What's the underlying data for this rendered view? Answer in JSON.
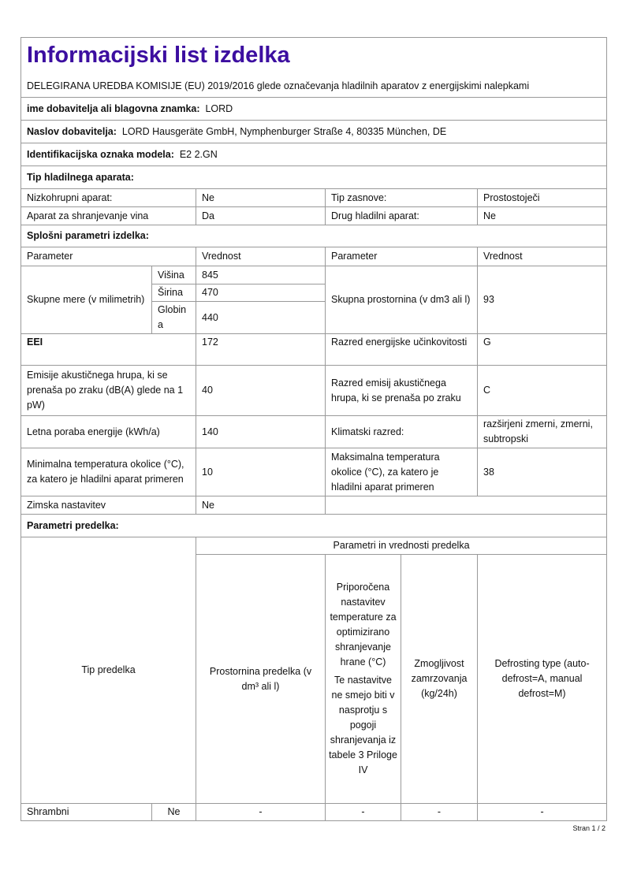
{
  "title": "Informacijski list izdelka",
  "subtitle": "DELEGIRANA UREDBA KOMISIJE (EU) 2019/2016 glede označevanja hladilnih aparatov z energijskimi nalepkami",
  "supplier": {
    "label": "ime dobavitelja ali blagovna znamka:",
    "value": "LORD"
  },
  "address": {
    "label": "Naslov dobavitelja:",
    "value": "LORD Hausgeräte GmbH, Nymphenburger Straße 4, 80335 München, DE"
  },
  "model": {
    "label": "Identifikacijska oznaka modela:",
    "value": "E2 2.GN"
  },
  "type_section": "Tip hladilnega aparata:",
  "type_rows": [
    [
      "Nizkohrupni aparat:",
      "Ne",
      "Tip zasnove:",
      "Prostostoječi"
    ],
    [
      "Aparat za shranjevanje vina",
      "Da",
      "Drug hladilni aparat:",
      "Ne"
    ]
  ],
  "general_section": "Splošni parametri izdelka:",
  "general_header": [
    "Parameter",
    "Vrednost",
    "Parameter",
    "Vrednost"
  ],
  "dimensions": {
    "label": "Skupne mere (v milimetrih)",
    "height_label": "Višina",
    "height": "845",
    "width_label": "Širina",
    "width": "470",
    "depth_label": "Globina",
    "depth": "440",
    "volume_label": "Skupna prostornina (v dm3 ali l)",
    "volume": "93"
  },
  "general_rows": [
    [
      "EEI",
      "172",
      "Razred energijske učinkovitosti",
      "G"
    ],
    [
      "Emisije akustičnega hrupa, ki se prenaša po zraku (dB(A) glede na 1 pW)",
      "40",
      "Razred emisij akustičnega hrupa, ki se prenaša po zraku",
      "C"
    ],
    [
      "Letna poraba energije (kWh/a)",
      "140",
      "Klimatski razred:",
      "razširjeni zmerni, zmerni, subtropski"
    ],
    [
      "Minimalna temperatura okolice (°C), za katero je hladilni aparat primeren",
      "10",
      "Maksimalna temperatura okolice (°C), za katero je hladilni aparat primeren",
      "38"
    ]
  ],
  "winter": {
    "label": "Zimska nastavitev",
    "value": "Ne"
  },
  "compartment_section": "Parametri predelka:",
  "compartment_header": {
    "type": "Tip predelka",
    "group": "Parametri in vrednosti predelka",
    "volume": "Prostornina predelka (v dm³ ali l)",
    "temp": "Priporočena nastavitev temperature za optimizirano shranjevanje hrane (°C)",
    "temp_note": "Te nastavitve ne smejo biti v nasprotju s pogoji shranjevanja iz tabele 3 Priloge IV",
    "freeze": "Zmogljivost zamrzovanja (kg/24h)",
    "defrost": "Defrosting type (auto-defrost=A, manual defrost=M)"
  },
  "compartments": [
    [
      "Shrambni",
      "Ne",
      "-",
      "-",
      "-",
      "-"
    ]
  ],
  "footer": "Stran 1 / 2"
}
